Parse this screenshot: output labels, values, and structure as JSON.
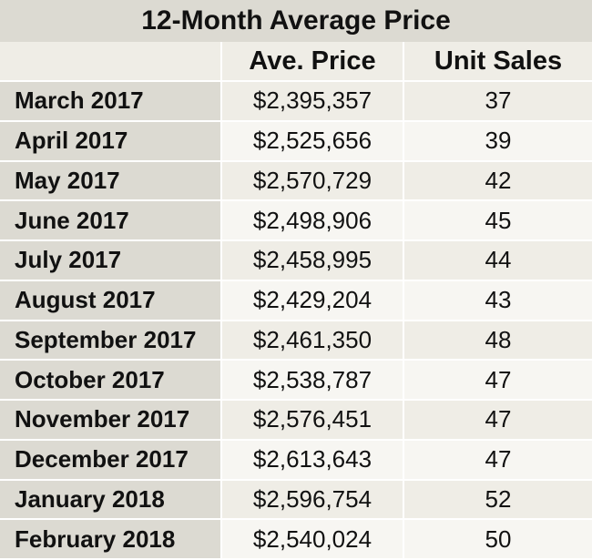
{
  "chart_data": {
    "type": "table",
    "title": "12-Month Average Price",
    "columns": [
      "",
      "Ave. Price",
      "Unit Sales"
    ],
    "rows": [
      {
        "month": "March 2017",
        "price": "$2,395,357",
        "sales": "37"
      },
      {
        "month": "April 2017",
        "price": "$2,525,656",
        "sales": "39"
      },
      {
        "month": "May 2017",
        "price": "$2,570,729",
        "sales": "42"
      },
      {
        "month": "June 2017",
        "price": "$2,498,906",
        "sales": "45"
      },
      {
        "month": "July 2017",
        "price": "$2,458,995",
        "sales": "44"
      },
      {
        "month": "August 2017",
        "price": "$2,429,204",
        "sales": "43"
      },
      {
        "month": "September 2017",
        "price": "$2,461,350",
        "sales": "48"
      },
      {
        "month": "October 2017",
        "price": "$2,538,787",
        "sales": "47"
      },
      {
        "month": "November 2017",
        "price": "$2,576,451",
        "sales": "47"
      },
      {
        "month": "December 2017",
        "price": "$2,613,643",
        "sales": "47"
      },
      {
        "month": "January 2018",
        "price": "$2,596,754",
        "sales": "52"
      },
      {
        "month": "February 2018",
        "price": "$2,540,024",
        "sales": "50"
      }
    ]
  },
  "colors": {
    "title_bg": "#dcdad2",
    "label_bg": "#dcdad2",
    "row_bg_odd": "#efede6",
    "row_bg_even": "#f7f6f2"
  }
}
